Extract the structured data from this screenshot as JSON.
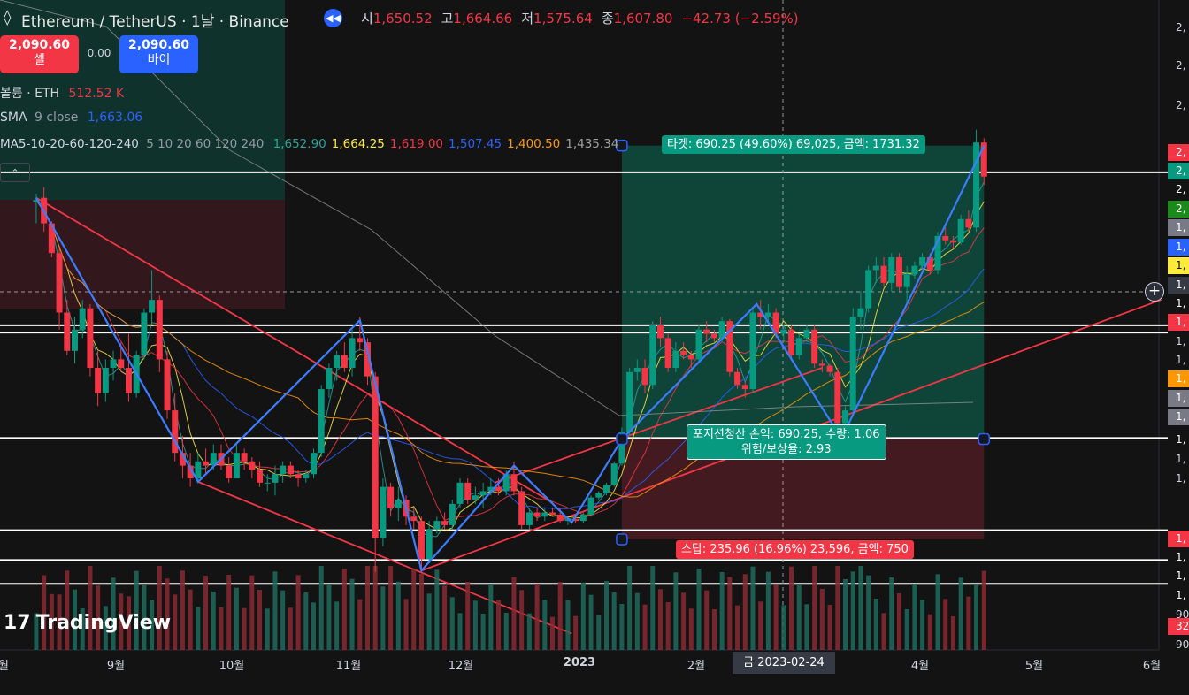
{
  "header": {
    "title": "Ethereum / TetherUS · 1날 · Binance",
    "ohlc": [
      {
        "key": "시",
        "value": "1,650.52"
      },
      {
        "key": "고",
        "value": "1,664.66"
      },
      {
        "key": "저",
        "value": "1,575.64"
      },
      {
        "key": "종",
        "value": "1,607.80"
      },
      {
        "key": "",
        "value": "−42.73 (−2.59%)"
      }
    ]
  },
  "trade": {
    "sell_price": "2,090.60",
    "sell_label": "셀",
    "spread": "0.00",
    "buy_price": "2,090.60",
    "buy_label": "바이"
  },
  "indicators": {
    "volume_label": "볼륨 · ETH",
    "volume_value": "512.52 K",
    "sma_label": "SMA",
    "sma_params": "9 close",
    "sma_value": "1,663.06",
    "ma_label": "MA5-10-20-60-120-240",
    "ma_params": "5 10 20 60 120 240",
    "ma_values": [
      {
        "value": "1,652.90",
        "color": "#26a69a"
      },
      {
        "value": "1,664.25",
        "color": "#ffeb3b"
      },
      {
        "value": "1,619.00",
        "color": "#f23645"
      },
      {
        "value": "1,507.45",
        "color": "#2962ff"
      },
      {
        "value": "1,400.50",
        "color": "#ff9800"
      },
      {
        "value": "1,435.34",
        "color": "#9e9e9e"
      }
    ]
  },
  "annotations": {
    "target": "타겟: 690.25 (49.60%) 69,025, 금액: 1731.32",
    "position_line1": "포지션청산 손익: 690.25, 수량: 1.06",
    "position_line2": "위험/보상율: 2.93",
    "stop": "스탑: 235.96 (16.96%) 23,596, 금액: 750",
    "cursor_date": "금 2023-02-24"
  },
  "watermark": "TradingView",
  "price_axis_labels": [
    {
      "text": "2,",
      "bg": "",
      "fg": "#d1d4dc"
    },
    {
      "text": "2,",
      "bg": "",
      "fg": "#d1d4dc"
    },
    {
      "text": "2,",
      "bg": "",
      "fg": "#d1d4dc"
    },
    {
      "text": "2,",
      "bg": "#f23645",
      "fg": "#ffffff"
    },
    {
      "text": "2,",
      "bg": "#089981",
      "fg": "#ffffff"
    },
    {
      "text": "2,",
      "bg": "",
      "fg": "#ffffff"
    },
    {
      "text": "2,",
      "bg": "#1b8a1b",
      "fg": "#ffffff"
    },
    {
      "text": "1,",
      "bg": "#787b86",
      "fg": "#ffffff"
    },
    {
      "text": "1,",
      "bg": "#2962ff",
      "fg": "#ffffff"
    },
    {
      "text": "1,",
      "bg": "#ffeb3b",
      "fg": "#131313"
    },
    {
      "text": "1,",
      "bg": "#363a45",
      "fg": "#ffffff"
    },
    {
      "text": "1,",
      "bg": "",
      "fg": "#ffffff"
    },
    {
      "text": "1,",
      "bg": "#f23645",
      "fg": "#ffffff"
    },
    {
      "text": "1,",
      "bg": "",
      "fg": "#d1d4dc"
    },
    {
      "text": "1,",
      "bg": "",
      "fg": "#d1d4dc"
    },
    {
      "text": "1,",
      "bg": "#ff9800",
      "fg": "#ffffff"
    },
    {
      "text": "1,",
      "bg": "#787b86",
      "fg": "#ffffff"
    },
    {
      "text": "1,",
      "bg": "#787b86",
      "fg": "#ffffff"
    },
    {
      "text": "1,",
      "bg": "",
      "fg": "#ffffff"
    },
    {
      "text": "1,",
      "bg": "",
      "fg": "#d1d4dc"
    },
    {
      "text": "1,",
      "bg": "",
      "fg": "#d1d4dc"
    },
    {
      "text": "1,",
      "bg": "#f23645",
      "fg": "#ffffff"
    },
    {
      "text": "1,",
      "bg": "",
      "fg": "#ffffff"
    },
    {
      "text": "1,",
      "bg": "",
      "fg": "#ffffff"
    },
    {
      "text": "1,",
      "bg": "",
      "fg": "#ffffff"
    },
    {
      "text": "90",
      "bg": "",
      "fg": "#d1d4dc"
    },
    {
      "text": "32",
      "bg": "#f23645",
      "fg": "#ffffff"
    },
    {
      "text": "90",
      "bg": "",
      "fg": "#d1d4dc"
    }
  ],
  "chart_data": {
    "type": "candlestick",
    "xaxis_labels": [
      "월",
      "9월",
      "10월",
      "11월",
      "12월",
      "2023",
      "2월",
      "4월",
      "5월",
      "6월"
    ],
    "horizontal_levels": [
      2020,
      1660,
      1643,
      1395,
      1178,
      1108,
      1052
    ],
    "position": {
      "entry": 1392.5,
      "target": 2082.75,
      "stop": 1156.54,
      "entry_date": "2023-01-12",
      "end_date": "2023-04-16"
    },
    "zigzag": [
      [
        "2022-08-13",
        1960
      ],
      [
        "2022-09-24",
        1292
      ],
      [
        "2022-11-05",
        1672
      ],
      [
        "2022-11-21",
        1083
      ],
      [
        "2022-12-15",
        1330
      ],
      [
        "2022-12-30",
        1196
      ],
      [
        "2023-01-12",
        1392
      ],
      [
        "2023-02-16",
        1710
      ],
      [
        "2023-03-10",
        1394
      ],
      [
        "2023-04-16",
        2082
      ]
    ],
    "candles_ohlc": [
      [
        "2022-08-13",
        1950,
        1970,
        1900,
        1955
      ],
      [
        "2022-08-15",
        1960,
        1985,
        1880,
        1900
      ],
      [
        "2022-08-17",
        1900,
        1905,
        1820,
        1830
      ],
      [
        "2022-08-19",
        1830,
        1840,
        1650,
        1690
      ],
      [
        "2022-08-21",
        1690,
        1720,
        1590,
        1600
      ],
      [
        "2022-08-23",
        1600,
        1680,
        1570,
        1650
      ],
      [
        "2022-08-25",
        1650,
        1720,
        1630,
        1700
      ],
      [
        "2022-08-27",
        1700,
        1710,
        1540,
        1560
      ],
      [
        "2022-08-29",
        1560,
        1600,
        1470,
        1500
      ],
      [
        "2022-08-31",
        1500,
        1580,
        1480,
        1560
      ],
      [
        "2022-09-02",
        1560,
        1600,
        1530,
        1580
      ],
      [
        "2022-09-04",
        1580,
        1620,
        1550,
        1560
      ],
      [
        "2022-09-06",
        1560,
        1640,
        1480,
        1500
      ],
      [
        "2022-09-08",
        1500,
        1600,
        1490,
        1590
      ],
      [
        "2022-09-10",
        1590,
        1700,
        1580,
        1690
      ],
      [
        "2022-09-12",
        1690,
        1790,
        1660,
        1720
      ],
      [
        "2022-09-14",
        1720,
        1730,
        1550,
        1580
      ],
      [
        "2022-09-16",
        1580,
        1600,
        1440,
        1460
      ],
      [
        "2022-09-18",
        1460,
        1500,
        1340,
        1360
      ],
      [
        "2022-09-20",
        1360,
        1400,
        1300,
        1330
      ],
      [
        "2022-09-22",
        1330,
        1360,
        1280,
        1300
      ],
      [
        "2022-09-24",
        1300,
        1360,
        1290,
        1340
      ],
      [
        "2022-09-26",
        1340,
        1370,
        1310,
        1330
      ],
      [
        "2022-09-28",
        1330,
        1380,
        1320,
        1360
      ],
      [
        "2022-09-30",
        1360,
        1380,
        1320,
        1330
      ],
      [
        "2022-10-02",
        1330,
        1350,
        1290,
        1300
      ],
      [
        "2022-10-04",
        1300,
        1380,
        1300,
        1360
      ],
      [
        "2022-10-06",
        1360,
        1370,
        1320,
        1340
      ],
      [
        "2022-10-08",
        1340,
        1350,
        1300,
        1320
      ],
      [
        "2022-10-10",
        1320,
        1340,
        1280,
        1290
      ],
      [
        "2022-10-12",
        1290,
        1310,
        1270,
        1290
      ],
      [
        "2022-10-14",
        1290,
        1330,
        1260,
        1310
      ],
      [
        "2022-10-16",
        1310,
        1340,
        1290,
        1330
      ],
      [
        "2022-10-18",
        1330,
        1340,
        1300,
        1310
      ],
      [
        "2022-10-20",
        1310,
        1320,
        1280,
        1300
      ],
      [
        "2022-10-22",
        1300,
        1320,
        1290,
        1310
      ],
      [
        "2022-10-24",
        1310,
        1370,
        1300,
        1360
      ],
      [
        "2022-10-26",
        1360,
        1520,
        1350,
        1510
      ],
      [
        "2022-10-28",
        1510,
        1570,
        1490,
        1560
      ],
      [
        "2022-10-30",
        1560,
        1600,
        1530,
        1590
      ],
      [
        "2022-11-01",
        1590,
        1620,
        1550,
        1560
      ],
      [
        "2022-11-03",
        1560,
        1650,
        1540,
        1630
      ],
      [
        "2022-11-05",
        1630,
        1680,
        1600,
        1620
      ],
      [
        "2022-11-07",
        1620,
        1630,
        1520,
        1540
      ],
      [
        "2022-11-09",
        1540,
        1550,
        1080,
        1160
      ],
      [
        "2022-11-11",
        1160,
        1300,
        1140,
        1280
      ],
      [
        "2022-11-13",
        1280,
        1290,
        1210,
        1230
      ],
      [
        "2022-11-15",
        1230,
        1280,
        1200,
        1250
      ],
      [
        "2022-11-17",
        1250,
        1260,
        1190,
        1210
      ],
      [
        "2022-11-19",
        1210,
        1230,
        1180,
        1200
      ],
      [
        "2022-11-21",
        1200,
        1210,
        1083,
        1110
      ],
      [
        "2022-11-23",
        1110,
        1200,
        1100,
        1180
      ],
      [
        "2022-11-25",
        1180,
        1210,
        1170,
        1200
      ],
      [
        "2022-11-27",
        1200,
        1220,
        1180,
        1190
      ],
      [
        "2022-11-29",
        1190,
        1250,
        1180,
        1240
      ],
      [
        "2022-12-01",
        1240,
        1300,
        1230,
        1290
      ],
      [
        "2022-12-03",
        1290,
        1300,
        1240,
        1250
      ],
      [
        "2022-12-05",
        1250,
        1280,
        1240,
        1260
      ],
      [
        "2022-12-07",
        1260,
        1290,
        1230,
        1270
      ],
      [
        "2022-12-09",
        1270,
        1300,
        1260,
        1280
      ],
      [
        "2022-12-11",
        1280,
        1300,
        1260,
        1270
      ],
      [
        "2022-12-13",
        1270,
        1320,
        1260,
        1310
      ],
      [
        "2022-12-15",
        1310,
        1340,
        1260,
        1270
      ],
      [
        "2022-12-17",
        1270,
        1280,
        1180,
        1190
      ],
      [
        "2022-12-19",
        1190,
        1230,
        1180,
        1220
      ],
      [
        "2022-12-21",
        1220,
        1230,
        1200,
        1210
      ],
      [
        "2022-12-23",
        1210,
        1230,
        1200,
        1220
      ],
      [
        "2022-12-25",
        1220,
        1230,
        1210,
        1215
      ],
      [
        "2022-12-27",
        1215,
        1230,
        1195,
        1200
      ],
      [
        "2022-12-29",
        1200,
        1210,
        1190,
        1205
      ],
      [
        "2022-12-31",
        1205,
        1215,
        1195,
        1200
      ],
      [
        "2023-01-02",
        1200,
        1220,
        1195,
        1215
      ],
      [
        "2023-01-04",
        1215,
        1260,
        1210,
        1255
      ],
      [
        "2023-01-06",
        1255,
        1270,
        1250,
        1265
      ],
      [
        "2023-01-08",
        1265,
        1290,
        1260,
        1285
      ],
      [
        "2023-01-10",
        1285,
        1340,
        1280,
        1335
      ],
      [
        "2023-01-12",
        1335,
        1420,
        1330,
        1410
      ],
      [
        "2023-01-14",
        1410,
        1560,
        1400,
        1550
      ],
      [
        "2023-01-16",
        1550,
        1580,
        1530,
        1560
      ],
      [
        "2023-01-18",
        1560,
        1580,
        1500,
        1520
      ],
      [
        "2023-01-20",
        1520,
        1670,
        1510,
        1660
      ],
      [
        "2023-01-22",
        1660,
        1680,
        1610,
        1630
      ],
      [
        "2023-01-24",
        1630,
        1640,
        1550,
        1560
      ],
      [
        "2023-01-26",
        1560,
        1620,
        1550,
        1600
      ],
      [
        "2023-01-28",
        1600,
        1620,
        1580,
        1590
      ],
      [
        "2023-01-30",
        1590,
        1600,
        1560,
        1580
      ],
      [
        "2023-02-01",
        1580,
        1660,
        1570,
        1650
      ],
      [
        "2023-02-03",
        1650,
        1670,
        1620,
        1640
      ],
      [
        "2023-02-05",
        1640,
        1650,
        1620,
        1630
      ],
      [
        "2023-02-07",
        1630,
        1680,
        1620,
        1670
      ],
      [
        "2023-02-09",
        1670,
        1675,
        1540,
        1550
      ],
      [
        "2023-02-11",
        1550,
        1560,
        1510,
        1520
      ],
      [
        "2023-02-13",
        1520,
        1530,
        1490,
        1510
      ],
      [
        "2023-02-15",
        1510,
        1700,
        1500,
        1690
      ],
      [
        "2023-02-17",
        1690,
        1720,
        1650,
        1680
      ],
      [
        "2023-02-19",
        1680,
        1710,
        1660,
        1690
      ],
      [
        "2023-02-21",
        1690,
        1700,
        1630,
        1640
      ],
      [
        "2023-02-23",
        1640,
        1660,
        1620,
        1650
      ],
      [
        "2023-02-25",
        1650,
        1660,
        1580,
        1590
      ],
      [
        "2023-02-27",
        1590,
        1640,
        1580,
        1630
      ],
      [
        "2023-03-01",
        1630,
        1660,
        1620,
        1650
      ],
      [
        "2023-03-03",
        1650,
        1660,
        1560,
        1570
      ],
      [
        "2023-03-05",
        1570,
        1580,
        1550,
        1565
      ],
      [
        "2023-03-07",
        1565,
        1570,
        1540,
        1550
      ],
      [
        "2023-03-09",
        1550,
        1560,
        1420,
        1430
      ],
      [
        "2023-03-11",
        1430,
        1470,
        1380,
        1460
      ],
      [
        "2023-03-13",
        1460,
        1700,
        1450,
        1680
      ],
      [
        "2023-03-15",
        1680,
        1740,
        1650,
        1700
      ],
      [
        "2023-03-17",
        1700,
        1800,
        1690,
        1790
      ],
      [
        "2023-03-19",
        1790,
        1820,
        1760,
        1800
      ],
      [
        "2023-03-21",
        1800,
        1820,
        1750,
        1760
      ],
      [
        "2023-03-23",
        1760,
        1830,
        1740,
        1820
      ],
      [
        "2023-03-25",
        1820,
        1830,
        1740,
        1750
      ],
      [
        "2023-03-27",
        1750,
        1800,
        1710,
        1780
      ],
      [
        "2023-03-29",
        1780,
        1810,
        1770,
        1800
      ],
      [
        "2023-03-31",
        1800,
        1830,
        1790,
        1820
      ],
      [
        "2023-04-02",
        1820,
        1830,
        1780,
        1790
      ],
      [
        "2023-04-04",
        1790,
        1880,
        1780,
        1870
      ],
      [
        "2023-04-06",
        1870,
        1890,
        1850,
        1860
      ],
      [
        "2023-04-08",
        1860,
        1870,
        1840,
        1855
      ],
      [
        "2023-04-10",
        1855,
        1920,
        1850,
        1910
      ],
      [
        "2023-04-12",
        1910,
        1930,
        1880,
        1890
      ],
      [
        "2023-04-14",
        1890,
        2120,
        1880,
        2090
      ],
      [
        "2023-04-16",
        2090,
        2100,
        1990,
        2010
      ]
    ]
  }
}
